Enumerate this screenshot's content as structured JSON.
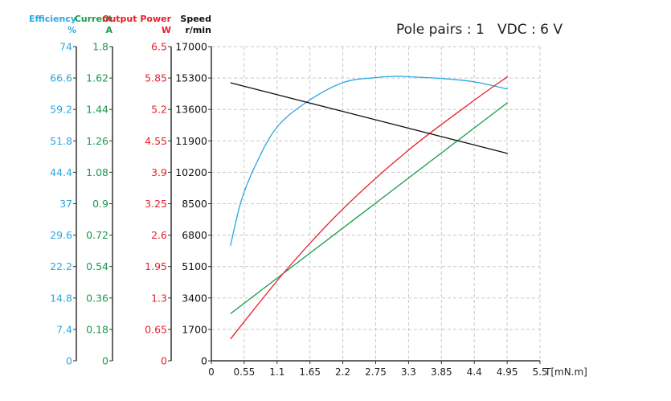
{
  "chart_data": {
    "type": "line",
    "title": "Pole pairs : 1   VDC : 6 V",
    "xlabel": "T[mN.m]",
    "xlim": [
      0,
      5.5
    ],
    "xticks": [
      "0",
      "0.55",
      "1.1",
      "1.65",
      "2.2",
      "2.75",
      "3.3",
      "3.85",
      "4.4",
      "4.95",
      "5.5"
    ],
    "grid": true,
    "axes": [
      {
        "id": "efficiency",
        "label": "Efficiency",
        "unit": "%",
        "color": "#29a8e0",
        "ylim": [
          0,
          74
        ],
        "ticks": [
          "0",
          "7.4",
          "14.8",
          "22.2",
          "29.6",
          "37",
          "44.4",
          "51.8",
          "59.2",
          "66.6",
          "74"
        ]
      },
      {
        "id": "current",
        "label": "Current",
        "unit": "A",
        "color": "#1a9a4a",
        "ylim": [
          0,
          1.8
        ],
        "ticks": [
          "0",
          "0.18",
          "0.36",
          "0.54",
          "0.72",
          "0.9",
          "1.08",
          "1.26",
          "1.44",
          "1.62",
          "1.8"
        ]
      },
      {
        "id": "power",
        "label": "Output Power",
        "unit": "W",
        "color": "#e8202a",
        "ylim": [
          0,
          6.5
        ],
        "ticks": [
          "0",
          "0.65",
          "1.3",
          "1.95",
          "2.6",
          "3.25",
          "3.9",
          "4.55",
          "5.2",
          "5.85",
          "6.5"
        ]
      },
      {
        "id": "speed",
        "label": "Speed",
        "unit": "r/min",
        "color": "#111111",
        "ylim": [
          0,
          17000
        ],
        "ticks": [
          "0",
          "1700",
          "3400",
          "5100",
          "6800",
          "8500",
          "10200",
          "11900",
          "13600",
          "15300",
          "17000"
        ]
      }
    ],
    "series": [
      {
        "axis": "efficiency",
        "color": "#29a8e0",
        "x": [
          0.32,
          0.5,
          0.73,
          1.08,
          1.57,
          2.2,
          2.75,
          3.1,
          3.3,
          3.85,
          4.4,
          4.96
        ],
        "y": [
          27.1,
          37.7,
          45.8,
          54.7,
          60.7,
          65.5,
          66.7,
          67.0,
          66.9,
          66.5,
          65.7,
          64.0
        ]
      },
      {
        "axis": "current",
        "color": "#1a9a4a",
        "x": [
          0.32,
          4.96
        ],
        "y": [
          0.27,
          1.48
        ]
      },
      {
        "axis": "power",
        "color": "#e8202a",
        "x": [
          0.32,
          1.24,
          2.2,
          3.3,
          4.4,
          4.96
        ],
        "y": [
          0.45,
          1.86,
          3.14,
          4.36,
          5.39,
          5.88
        ]
      },
      {
        "axis": "speed",
        "color": "#111111",
        "x": [
          0.32,
          4.96
        ],
        "y": [
          15043,
          11217
        ]
      }
    ]
  }
}
